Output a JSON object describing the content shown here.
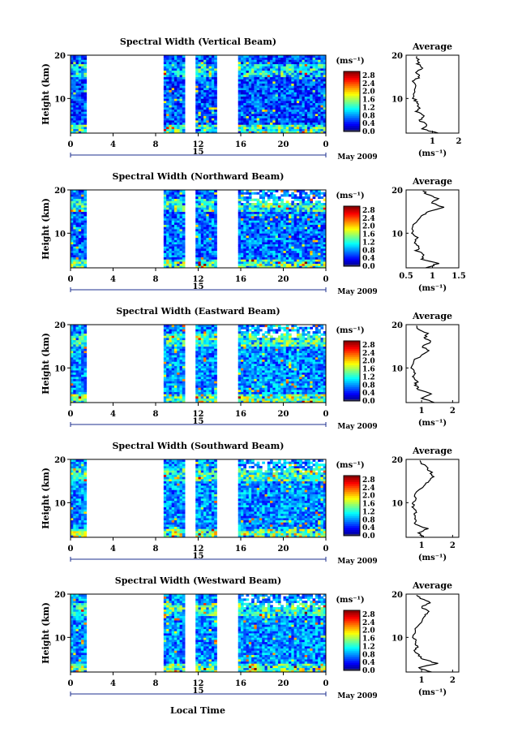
{
  "figure": {
    "colorbar_unit": "(ms⁻¹)",
    "average_title": "Average",
    "xlabel": "Local Time",
    "date_label": "May 2009",
    "day_label": "15",
    "ylabel": "Height (km)",
    "avg_xlabel": "(ms⁻¹)"
  },
  "chart_data": [
    {
      "type": "heatmap",
      "title": "Spectral Width (Vertical Beam)",
      "xlabel": "Local Time",
      "ylabel": "Height (km)",
      "xlim": [
        0,
        24
      ],
      "ylim": [
        2,
        20
      ],
      "xticks": [
        "0",
        "4",
        "8",
        "12",
        "16",
        "20",
        "0"
      ],
      "yticks": [
        "10",
        "20"
      ],
      "colorbar": {
        "label": "(ms⁻¹)",
        "ticks": [
          "0.0",
          "0.4",
          "0.8",
          "1.2",
          "1.6",
          "2.0",
          "2.4",
          "2.8"
        ],
        "range": [
          0,
          3.0
        ]
      },
      "data_gaps_hours": [
        [
          1.4,
          8.8
        ],
        [
          10.7,
          11.7
        ],
        [
          13.8,
          15.7
        ]
      ],
      "baseline": 0.6,
      "average_profile": {
        "title": "Average",
        "xlabel": "(ms⁻¹)",
        "xlim": [
          0,
          2
        ],
        "xticks": [
          "1",
          "2"
        ],
        "yticks": [
          "10",
          "20"
        ],
        "height_km": [
          2,
          3,
          4,
          5,
          6,
          7,
          8,
          9,
          10,
          12,
          14,
          15,
          16,
          17,
          18,
          19,
          20
        ],
        "width_ms": [
          1.2,
          0.6,
          0.8,
          0.5,
          0.7,
          0.4,
          0.5,
          0.4,
          0.3,
          0.35,
          0.3,
          0.5,
          0.4,
          0.6,
          0.45,
          0.5,
          0.3
        ]
      }
    },
    {
      "type": "heatmap",
      "title": "Spectral Width (Northward Beam)",
      "xlabel": "Local Time",
      "ylabel": "Height (km)",
      "xlim": [
        0,
        24
      ],
      "ylim": [
        2,
        20
      ],
      "xticks": [
        "0",
        "4",
        "8",
        "12",
        "16",
        "20",
        "0"
      ],
      "yticks": [
        "10",
        "20"
      ],
      "colorbar": {
        "label": "(ms⁻¹)",
        "ticks": [
          "0.0",
          "0.4",
          "0.8",
          "1.2",
          "1.6",
          "2.0",
          "2.4",
          "2.8"
        ],
        "range": [
          0,
          3.0
        ]
      },
      "data_gaps_hours": [
        [
          1.4,
          8.8
        ],
        [
          10.7,
          11.7
        ],
        [
          13.8,
          15.7
        ]
      ],
      "baseline": 0.7,
      "average_profile": {
        "title": "Average",
        "xlabel": "(ms⁻¹)",
        "xlim": [
          0.5,
          1.5
        ],
        "xticks": [
          "0.5",
          "1",
          "1.5"
        ],
        "yticks": [
          "10",
          "20"
        ],
        "height_km": [
          2,
          3,
          4,
          5,
          6,
          7,
          8,
          9,
          10,
          12,
          14,
          15,
          16,
          17,
          18,
          19,
          20
        ],
        "width_ms": [
          0.9,
          1.1,
          0.8,
          0.85,
          0.7,
          0.75,
          0.65,
          0.7,
          0.6,
          0.65,
          0.8,
          0.9,
          1.2,
          1.0,
          1.1,
          0.9,
          0.8
        ]
      }
    },
    {
      "type": "heatmap",
      "title": "Spectral Width (Eastward Beam)",
      "xlabel": "Local Time",
      "ylabel": "Height (km)",
      "xlim": [
        0,
        24
      ],
      "ylim": [
        2,
        20
      ],
      "xticks": [
        "0",
        "4",
        "8",
        "12",
        "16",
        "20",
        "0"
      ],
      "yticks": [
        "10",
        "20"
      ],
      "colorbar": {
        "label": "(ms⁻¹)",
        "ticks": [
          "0.0",
          "0.4",
          "0.8",
          "1.2",
          "1.6",
          "2.0",
          "2.4",
          "2.8"
        ],
        "range": [
          0,
          3.0
        ]
      },
      "data_gaps_hours": [
        [
          1.4,
          8.8
        ],
        [
          10.7,
          11.7
        ],
        [
          13.8,
          15.7
        ]
      ],
      "baseline": 0.8,
      "average_profile": {
        "title": "Average",
        "xlabel": "(ms⁻¹)",
        "xlim": [
          0.5,
          2.2
        ],
        "xticks": [
          "1",
          "2"
        ],
        "yticks": [
          "10",
          "20"
        ],
        "height_km": [
          2,
          3,
          4,
          5,
          6,
          7,
          8,
          9,
          10,
          12,
          14,
          15,
          16,
          17,
          18,
          19,
          20
        ],
        "width_ms": [
          1.4,
          1.0,
          1.3,
          0.9,
          0.8,
          0.85,
          0.75,
          0.8,
          0.7,
          0.8,
          1.2,
          1.0,
          1.3,
          1.1,
          1.2,
          0.9,
          0.8
        ]
      }
    },
    {
      "type": "heatmap",
      "title": "Spectral Width (Southward Beam)",
      "xlabel": "Local Time",
      "ylabel": "Height (km)",
      "xlim": [
        0,
        24
      ],
      "ylim": [
        2,
        20
      ],
      "xticks": [
        "0",
        "4",
        "8",
        "12",
        "16",
        "20",
        "0"
      ],
      "yticks": [
        "10",
        "20"
      ],
      "colorbar": {
        "label": "(ms⁻¹)",
        "ticks": [
          "0.0",
          "0.4",
          "0.8",
          "1.2",
          "1.6",
          "2.0",
          "2.4",
          "2.8"
        ],
        "range": [
          0,
          3.0
        ]
      },
      "data_gaps_hours": [
        [
          1.4,
          8.8
        ],
        [
          10.7,
          11.7
        ],
        [
          13.8,
          15.7
        ]
      ],
      "baseline": 0.8,
      "average_profile": {
        "title": "Average",
        "xlabel": "(ms⁻¹)",
        "xlim": [
          0.5,
          2.2
        ],
        "xticks": [
          "1",
          "2"
        ],
        "yticks": [
          "10",
          "20"
        ],
        "height_km": [
          2,
          3,
          4,
          5,
          6,
          7,
          8,
          9,
          10,
          12,
          14,
          15,
          16,
          17,
          18,
          19,
          20
        ],
        "width_ms": [
          1.1,
          0.9,
          1.2,
          0.8,
          0.85,
          0.75,
          0.8,
          0.7,
          0.75,
          0.8,
          1.1,
          1.2,
          1.4,
          1.3,
          1.2,
          1.0,
          0.9
        ]
      }
    },
    {
      "type": "heatmap",
      "title": "Spectral Width (Westward Beam)",
      "xlabel": "Local Time",
      "ylabel": "Height (km)",
      "xlim": [
        0,
        24
      ],
      "ylim": [
        2,
        20
      ],
      "xticks": [
        "0",
        "4",
        "8",
        "12",
        "16",
        "20",
        "0"
      ],
      "yticks": [
        "10",
        "20"
      ],
      "colorbar": {
        "label": "(ms⁻¹)",
        "ticks": [
          "0.0",
          "0.4",
          "0.8",
          "1.2",
          "1.6",
          "2.0",
          "2.4",
          "2.8"
        ],
        "range": [
          0,
          3.0
        ]
      },
      "data_gaps_hours": [
        [
          1.4,
          8.8
        ],
        [
          10.7,
          11.7
        ],
        [
          13.8,
          15.7
        ]
      ],
      "baseline": 0.8,
      "average_profile": {
        "title": "Average",
        "xlabel": "(ms⁻¹)",
        "xlim": [
          0.5,
          2.2
        ],
        "xticks": [
          "1",
          "2"
        ],
        "yticks": [
          "10",
          "20"
        ],
        "height_km": [
          2,
          3,
          4,
          5,
          6,
          7,
          8,
          9,
          10,
          12,
          14,
          15,
          16,
          17,
          18,
          19,
          20
        ],
        "width_ms": [
          1.3,
          0.9,
          1.5,
          1.0,
          0.9,
          0.8,
          0.85,
          0.8,
          0.75,
          0.8,
          1.0,
          1.1,
          1.2,
          1.0,
          1.3,
          1.0,
          0.8
        ]
      }
    }
  ]
}
